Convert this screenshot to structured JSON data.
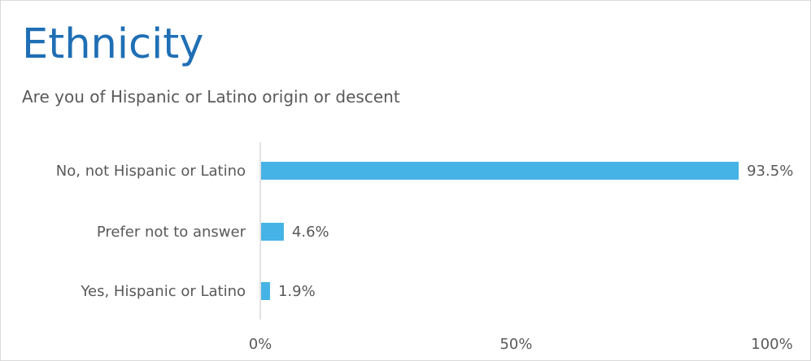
{
  "header": {
    "title": "Ethnicity",
    "subtitle": "Are you of Hispanic or Latino origin or descent"
  },
  "chart_data": {
    "type": "bar",
    "orientation": "horizontal",
    "categories": [
      "No, not Hispanic or Latino",
      "Prefer not to answer",
      "Yes, Hispanic or Latino"
    ],
    "values": [
      93.5,
      4.6,
      1.9
    ],
    "value_labels": [
      "93.5%",
      "4.6%",
      "1.9%"
    ],
    "xlim": [
      0,
      100
    ],
    "x_ticks": [
      0,
      50,
      100
    ],
    "x_tick_labels": [
      "0%",
      "50%",
      "100%"
    ],
    "grid": false,
    "legend": "none",
    "bar_color": "#45b3e6",
    "title": "Ethnicity",
    "subtitle": "Are you of Hispanic or Latino origin or descent"
  }
}
